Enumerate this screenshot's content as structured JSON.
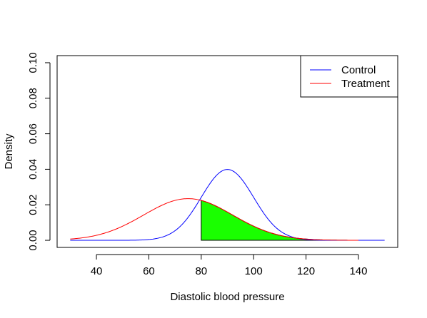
{
  "chart_data": {
    "type": "line",
    "title": "",
    "xlabel": "Diastolic blood pressure",
    "ylabel": "Density",
    "xlim": [
      25,
      155
    ],
    "ylim": [
      -0.004,
      0.104
    ],
    "x_ticks": [
      40,
      60,
      80,
      100,
      120,
      140
    ],
    "y_ticks": [
      0.0,
      0.02,
      0.04,
      0.06,
      0.08,
      0.1
    ],
    "x_tick_labels": [
      "40",
      "60",
      "80",
      "100",
      "120",
      "140"
    ],
    "y_tick_labels": [
      "0.00",
      "0.02",
      "0.04",
      "0.06",
      "0.08",
      "0.10"
    ],
    "grid": false,
    "legend_position": "top-right",
    "series": [
      {
        "name": "Control",
        "color": "#0000ff",
        "distribution": "normal",
        "mean": 90,
        "sd": 10,
        "x_range": [
          30,
          150
        ]
      },
      {
        "name": "Treatment",
        "color": "#ff0000",
        "distribution": "normal",
        "mean": 75,
        "sd": 17,
        "x_range": [
          30,
          140
        ]
      }
    ],
    "shaded_region": {
      "series": "Treatment",
      "x_from": 80,
      "x_to": 140,
      "fill": "#1aff00",
      "stroke": "#000000"
    }
  }
}
